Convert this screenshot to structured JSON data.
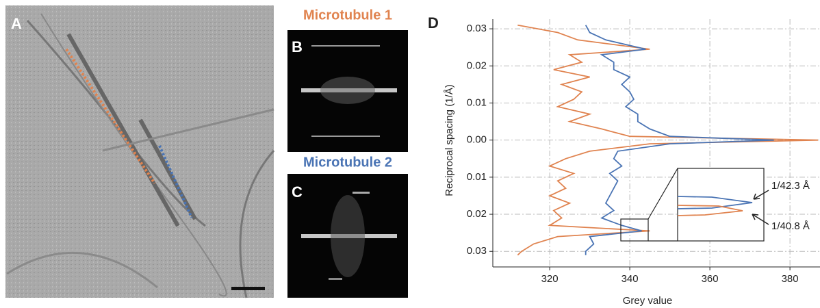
{
  "panel_labels": [
    "A",
    "B",
    "C",
    "D"
  ],
  "fft_titles": [
    "Microtubule 1",
    "Microtubule 2"
  ],
  "chart_data": {
    "type": "line",
    "x_label": "Grey value",
    "y_label": "Reciprocal spacing (1/Å)",
    "y": [
      0.031,
      0.029,
      0.027,
      0.0245,
      0.023,
      0.021,
      0.019,
      0.017,
      0.015,
      0.013,
      0.011,
      0.009,
      0.007,
      0.005,
      0.003,
      0.001,
      0,
      -0.001,
      -0.003,
      -0.005,
      -0.007,
      -0.009,
      -0.011,
      -0.013,
      -0.015,
      -0.017,
      -0.019,
      -0.021,
      -0.023,
      -0.0245,
      -0.026,
      -0.028,
      -0.03,
      -0.031
    ],
    "series": [
      {
        "color": "#e0834f",
        "values": [
          312,
          322,
          327,
          345,
          325,
          328,
          321,
          330,
          323,
          328,
          326,
          322,
          330,
          325,
          333,
          340,
          387,
          345,
          330,
          324,
          320,
          326,
          322,
          324,
          320,
          325,
          321,
          323,
          320,
          345,
          322,
          316,
          313,
          312
        ]
      },
      {
        "color": "#4a74b4",
        "values": [
          329,
          330,
          334,
          344,
          333,
          336,
          336,
          340,
          338,
          340,
          341,
          339,
          342,
          342,
          345,
          350,
          376,
          350,
          337,
          336,
          338,
          335,
          337,
          336,
          335,
          334,
          336,
          333,
          338,
          343,
          330,
          331,
          329,
          329
        ]
      }
    ],
    "xlim": [
      305.8,
      387.5
    ],
    "ylim": [
      -0.0342,
      0.0326
    ],
    "xticks": [
      320,
      340,
      360,
      380
    ],
    "yticks": [
      0.03,
      0.02,
      0.01,
      {
        "value": 0,
        "label": "0.00"
      },
      {
        "value": -0.01,
        "label": "0.01"
      },
      {
        "value": -0.02,
        "label": "0.02"
      },
      {
        "value": -0.03,
        "label": "0.03"
      }
    ],
    "grid": true,
    "annotations": [
      "1/42.3 Å",
      "1/40.8 Å"
    ]
  }
}
